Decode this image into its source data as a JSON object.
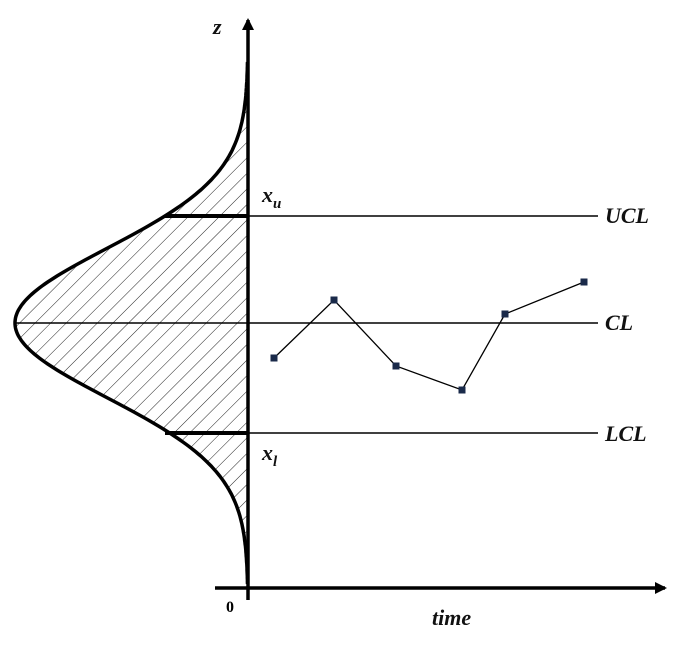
{
  "axis": {
    "vertical_label": "z",
    "horizontal_label": "time",
    "origin_label": "0"
  },
  "limits": {
    "upper": {
      "name": "UCL",
      "value_symbol": "x",
      "value_subscript": "u"
    },
    "center": {
      "name": "CL"
    },
    "lower": {
      "name": "LCL",
      "value_symbol": "x",
      "value_subscript": "l"
    }
  }
}
